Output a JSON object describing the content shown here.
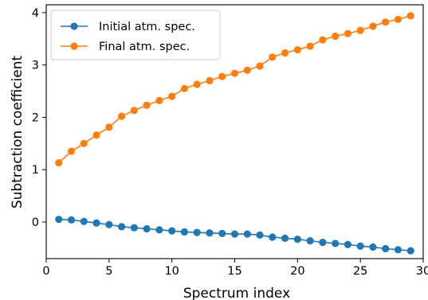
{
  "chart_data": {
    "type": "line",
    "title": "",
    "xlabel": "Spectrum index",
    "ylabel": "Subtraction  coefficient",
    "xlim": [
      0,
      30
    ],
    "ylim": [
      -0.7,
      4.15
    ],
    "xticks": [
      0,
      5,
      10,
      15,
      20,
      25,
      30
    ],
    "yticks": [
      0,
      1,
      2,
      3,
      4
    ],
    "grid": false,
    "legend_position": "top-left",
    "x": [
      1,
      2,
      3,
      4,
      5,
      6,
      7,
      8,
      9,
      10,
      11,
      12,
      13,
      14,
      15,
      16,
      17,
      18,
      19,
      20,
      21,
      22,
      23,
      24,
      25,
      26,
      27,
      28,
      29
    ],
    "series": [
      {
        "name": "Initial atm. spec.",
        "color": "#1f77b4",
        "marker": "circle",
        "values": [
          0.05,
          0.04,
          0.01,
          -0.02,
          -0.05,
          -0.09,
          -0.11,
          -0.13,
          -0.15,
          -0.17,
          -0.19,
          -0.2,
          -0.21,
          -0.22,
          -0.23,
          -0.23,
          -0.25,
          -0.29,
          -0.31,
          -0.33,
          -0.36,
          -0.39,
          -0.41,
          -0.43,
          -0.46,
          -0.48,
          -0.51,
          -0.53,
          -0.55
        ]
      },
      {
        "name": "Final atm. spec.",
        "color": "#ff7f0e",
        "marker": "circle",
        "values": [
          1.13,
          1.35,
          1.5,
          1.66,
          1.81,
          2.02,
          2.13,
          2.23,
          2.32,
          2.4,
          2.55,
          2.63,
          2.7,
          2.78,
          2.84,
          2.9,
          2.98,
          3.15,
          3.23,
          3.29,
          3.36,
          3.48,
          3.55,
          3.6,
          3.66,
          3.74,
          3.82,
          3.87,
          3.94
        ]
      }
    ]
  }
}
